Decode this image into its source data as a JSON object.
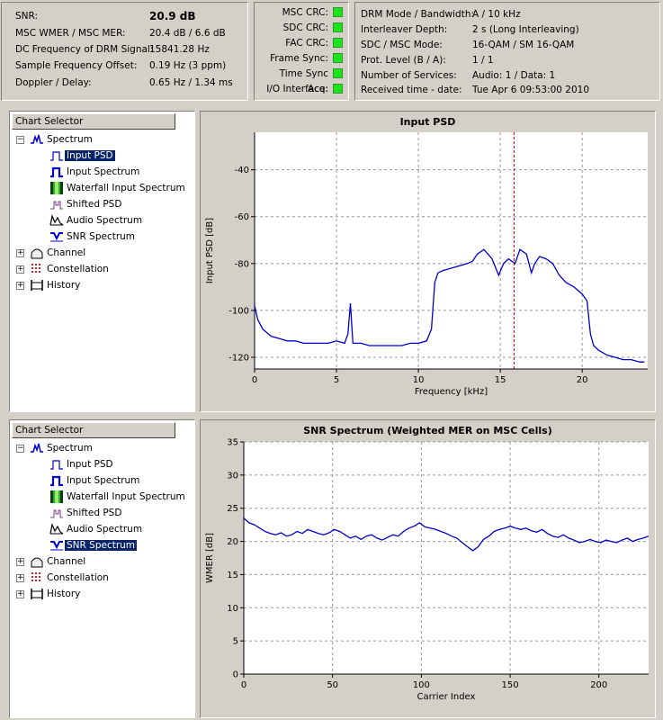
{
  "status": {
    "snr_label": "SNR:",
    "snr_value": "20.9 dB",
    "wmer_label": "MSC WMER / MSC MER:",
    "wmer_value": "20.4 dB / 6.6 dB",
    "dcfreq_label": "DC Frequency of DRM Signal:",
    "dcfreq_value": "15841.28 Hz",
    "sfo_label": "Sample Frequency Offset:",
    "sfo_value": "0.19 Hz (3 ppm)",
    "doppler_label": "Doppler / Delay:",
    "doppler_value": "0.65 Hz / 1.34 ms"
  },
  "indicators": {
    "color_on": "#19e619",
    "items": [
      "MSC CRC:",
      "SDC CRC:",
      "FAC CRC:",
      "Frame Sync:",
      "Time Sync Acq:",
      "I/O Interface:"
    ]
  },
  "params": {
    "mode_label": "DRM Mode / Bandwidth:",
    "mode_value": "A / 10 kHz",
    "interleaver_label": "Interleaver Depth:",
    "interleaver_value": "2 s (Long Interleaving)",
    "sdcmsc_label": "SDC / MSC Mode:",
    "sdcmsc_value": "16-QAM / SM 16-QAM",
    "prot_label": "Prot. Level (B / A):",
    "prot_value": "1 / 1",
    "services_label": "Number of Services:",
    "services_value": "Audio: 1 / Data: 1",
    "time_label": "Received time - date:",
    "time_value": "Tue Apr 6 09:53:00 2010"
  },
  "selector_top": {
    "header": "Chart Selector",
    "spectrum": "Spectrum",
    "items": [
      "Input PSD",
      "Input Spectrum",
      "Waterfall Input Spectrum",
      "Shifted PSD",
      "Audio Spectrum",
      "SNR Spectrum"
    ],
    "channel": "Channel",
    "constellation": "Constellation",
    "history": "History",
    "selected": "Input PSD"
  },
  "selector_bottom": {
    "header": "Chart Selector",
    "spectrum": "Spectrum",
    "items": [
      "Input PSD",
      "Input Spectrum",
      "Waterfall Input Spectrum",
      "Shifted PSD",
      "Audio Spectrum",
      "SNR Spectrum"
    ],
    "channel": "Channel",
    "constellation": "Constellation",
    "history": "History",
    "selected": "SNR Spectrum"
  },
  "chart_data": [
    {
      "type": "line",
      "title": "Input PSD",
      "xlabel": "Frequency [kHz]",
      "ylabel": "Input PSD [dB]",
      "xlim": [
        0,
        24
      ],
      "ylim": [
        -125,
        -24
      ],
      "xticks": [
        0,
        5,
        10,
        15,
        20
      ],
      "yticks": [
        -40,
        -60,
        -80,
        -100,
        -120
      ],
      "grid": true,
      "line_color": "#0000cc",
      "marker_line": {
        "x": 15.84,
        "color": "#cc0000"
      },
      "series": [
        {
          "x": [
            0,
            0.2,
            0.5,
            1,
            1.5,
            2,
            2.5,
            3,
            3.5,
            4,
            4.5,
            5,
            5.5,
            5.7,
            5.85,
            6,
            6.5,
            7,
            7.5,
            8,
            8.5,
            9,
            9.5,
            10,
            10.5,
            10.8,
            11,
            11.2,
            11.5,
            12,
            12.5,
            13,
            13.3,
            13.6,
            14,
            14.5,
            14.9,
            15.2,
            15.5,
            15.9,
            16.2,
            16.6,
            16.9,
            17.1,
            17.4,
            17.8,
            18.2,
            18.6,
            19,
            19.5,
            20,
            20.3,
            20.5,
            20.7,
            21,
            21.5,
            22,
            22.5,
            23,
            23.5,
            23.8
          ],
          "y": [
            -98,
            -104,
            -108,
            -111,
            -112,
            -113,
            -113,
            -114,
            -114,
            -114,
            -114,
            -113,
            -114,
            -110,
            -97,
            -114,
            -114,
            -115,
            -115,
            -115,
            -115,
            -115,
            -114,
            -114,
            -113,
            -108,
            -88,
            -84,
            -83,
            -82,
            -81,
            -80,
            -79,
            -76,
            -74,
            -78,
            -85,
            -80,
            -78,
            -80,
            -74,
            -76,
            -84,
            -80,
            -77,
            -78,
            -80,
            -85,
            -88,
            -90,
            -93,
            -96,
            -110,
            -115,
            -117,
            -119,
            -120,
            -121,
            -121,
            -122,
            -122
          ]
        }
      ]
    },
    {
      "type": "line",
      "title": "SNR Spectrum (Weighted MER on MSC Cells)",
      "xlabel": "Carrier Index",
      "ylabel": "WMER [dB]",
      "xlim": [
        0,
        228
      ],
      "ylim": [
        0,
        35
      ],
      "xticks": [
        0,
        50,
        100,
        150,
        200
      ],
      "yticks": [
        0,
        5,
        10,
        15,
        20,
        25,
        30,
        35
      ],
      "grid": true,
      "line_color": "#0000cc",
      "series": [
        {
          "x": [
            0,
            3,
            6,
            9,
            12,
            15,
            18,
            21,
            24,
            27,
            30,
            33,
            36,
            39,
            42,
            45,
            48,
            51,
            54,
            57,
            60,
            63,
            66,
            69,
            72,
            75,
            78,
            81,
            84,
            87,
            90,
            93,
            96,
            99,
            102,
            105,
            108,
            111,
            114,
            117,
            120,
            123,
            126,
            129,
            132,
            135,
            138,
            141,
            144,
            147,
            150,
            153,
            156,
            159,
            162,
            165,
            168,
            171,
            174,
            177,
            180,
            183,
            186,
            189,
            192,
            195,
            198,
            201,
            204,
            207,
            210,
            213,
            216,
            219,
            222,
            225,
            228
          ],
          "y": [
            23.5,
            22.8,
            22.5,
            22.0,
            21.5,
            21.2,
            21.0,
            21.3,
            20.8,
            21.0,
            21.5,
            21.2,
            21.8,
            21.5,
            21.2,
            21.0,
            21.3,
            21.8,
            21.5,
            21.0,
            20.5,
            20.8,
            20.3,
            20.8,
            21.0,
            20.5,
            20.2,
            20.6,
            21.0,
            20.8,
            21.5,
            22.0,
            22.3,
            22.8,
            22.2,
            22.0,
            21.8,
            21.5,
            21.2,
            20.8,
            20.5,
            19.8,
            19.2,
            18.6,
            19.2,
            20.3,
            20.8,
            21.5,
            21.8,
            22.0,
            22.3,
            22.0,
            21.8,
            22.0,
            21.6,
            21.4,
            21.8,
            21.2,
            20.8,
            20.6,
            21.0,
            20.5,
            20.2,
            19.8,
            20.0,
            20.3,
            20.0,
            19.8,
            20.2,
            20.0,
            19.8,
            20.2,
            20.5,
            20.0,
            20.3,
            20.5,
            20.8
          ]
        }
      ]
    }
  ]
}
